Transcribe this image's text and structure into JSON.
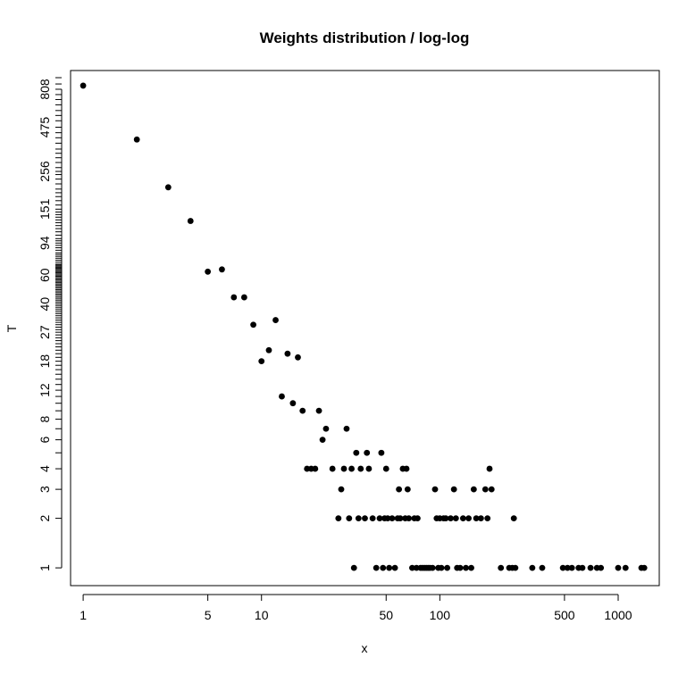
{
  "chart_data": {
    "type": "scatter",
    "title": "Weights distribution / log-log",
    "xlabel": "x",
    "ylabel": "T",
    "x_scale": "log",
    "y_scale": "log",
    "xlim": [
      0.85,
      1700
    ],
    "ylim": [
      0.78,
      1050
    ],
    "x_ticks": [
      1,
      5,
      10,
      50,
      100,
      500,
      1000
    ],
    "y_ticks": [
      1,
      2,
      3,
      4,
      6,
      8,
      12,
      18,
      27,
      40,
      60,
      94,
      151,
      256,
      475,
      808
    ],
    "y_minor_ticks": [
      5,
      7,
      9,
      10,
      11,
      13,
      14,
      15,
      16,
      17,
      19,
      20,
      21,
      22,
      23,
      24,
      25,
      26,
      28,
      29,
      30,
      31,
      32,
      33,
      34,
      35,
      36,
      37,
      38,
      39,
      41,
      42,
      43,
      44,
      45,
      46,
      47,
      48,
      49,
      50,
      51,
      52,
      53,
      54,
      55,
      56,
      57,
      58,
      59,
      61,
      62,
      63,
      64,
      65,
      66,
      67,
      68,
      69,
      70,
      72,
      74,
      76,
      78,
      80,
      82,
      85,
      88,
      91,
      97,
      100,
      105,
      110,
      115,
      120,
      125,
      130,
      135,
      140,
      145,
      160,
      170,
      180,
      190,
      200,
      215,
      230,
      245,
      270,
      290,
      310,
      330,
      350,
      380,
      410,
      440,
      520,
      560,
      600,
      650,
      700,
      750,
      870,
      950
    ],
    "grid": false,
    "legend": "none",
    "color": "#000000",
    "points": [
      [
        1,
        850
      ],
      [
        2,
        400
      ],
      [
        3,
        205
      ],
      [
        4,
        128
      ],
      [
        5,
        63
      ],
      [
        6,
        65
      ],
      [
        7,
        44
      ],
      [
        8,
        44
      ],
      [
        9,
        30
      ],
      [
        10,
        18
      ],
      [
        11,
        21
      ],
      [
        12,
        32
      ],
      [
        13,
        11
      ],
      [
        14,
        20
      ],
      [
        15,
        10
      ],
      [
        16,
        19
      ],
      [
        17,
        9
      ],
      [
        18,
        4
      ],
      [
        19,
        4
      ],
      [
        20,
        4
      ],
      [
        21,
        9
      ],
      [
        22,
        6
      ],
      [
        23,
        7
      ],
      [
        25,
        4
      ],
      [
        27,
        2
      ],
      [
        28,
        3
      ],
      [
        29,
        4
      ],
      [
        30,
        7
      ],
      [
        31,
        2
      ],
      [
        32,
        4
      ],
      [
        33,
        1
      ],
      [
        34,
        5
      ],
      [
        35,
        2
      ],
      [
        36,
        4
      ],
      [
        38,
        2
      ],
      [
        39,
        5
      ],
      [
        40,
        4
      ],
      [
        42,
        2
      ],
      [
        44,
        1
      ],
      [
        46,
        2
      ],
      [
        47,
        5
      ],
      [
        48,
        1
      ],
      [
        49,
        2
      ],
      [
        50,
        4
      ],
      [
        51,
        2
      ],
      [
        52,
        1
      ],
      [
        54,
        2
      ],
      [
        56,
        1
      ],
      [
        58,
        2
      ],
      [
        59,
        3
      ],
      [
        60,
        2
      ],
      [
        62,
        4
      ],
      [
        64,
        2
      ],
      [
        65,
        4
      ],
      [
        66,
        3
      ],
      [
        67,
        2
      ],
      [
        70,
        1
      ],
      [
        72,
        2
      ],
      [
        74,
        1
      ],
      [
        75,
        2
      ],
      [
        78,
        1
      ],
      [
        80,
        1
      ],
      [
        82,
        1
      ],
      [
        84,
        1
      ],
      [
        86,
        1
      ],
      [
        88,
        1
      ],
      [
        91,
        1
      ],
      [
        94,
        3
      ],
      [
        96,
        2
      ],
      [
        98,
        1
      ],
      [
        100,
        2
      ],
      [
        102,
        1
      ],
      [
        105,
        2
      ],
      [
        108,
        2
      ],
      [
        110,
        1
      ],
      [
        115,
        2
      ],
      [
        120,
        3
      ],
      [
        123,
        2
      ],
      [
        125,
        1
      ],
      [
        130,
        1
      ],
      [
        135,
        2
      ],
      [
        140,
        1
      ],
      [
        145,
        2
      ],
      [
        150,
        1
      ],
      [
        155,
        3
      ],
      [
        160,
        2
      ],
      [
        170,
        2
      ],
      [
        180,
        3
      ],
      [
        185,
        2
      ],
      [
        190,
        4
      ],
      [
        195,
        3
      ],
      [
        220,
        1
      ],
      [
        245,
        1
      ],
      [
        255,
        1
      ],
      [
        260,
        2
      ],
      [
        265,
        1
      ],
      [
        330,
        1
      ],
      [
        375,
        1
      ],
      [
        490,
        1
      ],
      [
        520,
        1
      ],
      [
        550,
        1
      ],
      [
        600,
        1
      ],
      [
        630,
        1
      ],
      [
        700,
        1
      ],
      [
        760,
        1
      ],
      [
        800,
        1
      ],
      [
        1000,
        1
      ],
      [
        1100,
        1
      ],
      [
        1350,
        1
      ],
      [
        1400,
        1
      ]
    ]
  }
}
